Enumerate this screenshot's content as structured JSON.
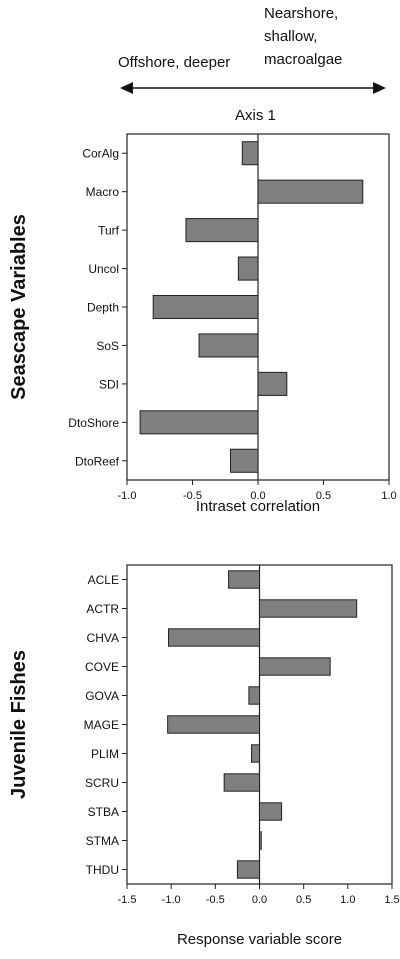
{
  "header": {
    "left_label": "Offshore, deeper",
    "right_label_lines": [
      "Nearshore,",
      "shallow,",
      "macroalgae"
    ],
    "axis_title": "Axis 1"
  },
  "colors": {
    "bar_fill": "#7f7f7f",
    "bar_stroke": "#222222",
    "axis": "#222222"
  },
  "chart_data": [
    {
      "type": "bar",
      "orientation": "horizontal",
      "group_label": "Seascape Variables",
      "xlabel": "Intraset correlation",
      "xlim": [
        -1.0,
        1.0
      ],
      "xticks": [
        -1.0,
        -0.5,
        0.0,
        0.5,
        1.0
      ],
      "xtick_labels": [
        "-1.0",
        "-0.5",
        "0.0",
        "0.5",
        "1.0"
      ],
      "categories": [
        "CorAlg",
        "Macro",
        "Turf",
        "Uncol",
        "Depth",
        "SoS",
        "SDI",
        "DtoShore",
        "DtoReef"
      ],
      "values": [
        -0.12,
        0.8,
        -0.55,
        -0.15,
        -0.8,
        -0.45,
        0.22,
        -0.9,
        -0.21
      ],
      "grid": false
    },
    {
      "type": "bar",
      "orientation": "horizontal",
      "group_label": "Juvenile Fishes",
      "xlabel": "Response variable score",
      "xlim": [
        -1.5,
        1.5
      ],
      "xticks": [
        -1.5,
        -1.0,
        -0.5,
        0.0,
        0.5,
        1.0,
        1.5
      ],
      "xtick_labels": [
        "-1.5",
        "-1.0",
        "-0.5",
        "0.0",
        "0.5",
        "1.0",
        "1.5"
      ],
      "categories": [
        "ACLE",
        "ACTR",
        "CHVA",
        "COVE",
        "GOVA",
        "MAGE",
        "PLIM",
        "SCRU",
        "STBA",
        "STMA",
        "THDU"
      ],
      "values": [
        -0.35,
        1.1,
        -1.03,
        0.8,
        -0.12,
        -1.04,
        -0.09,
        -0.4,
        0.25,
        0.02,
        -0.25
      ],
      "grid": false
    }
  ]
}
